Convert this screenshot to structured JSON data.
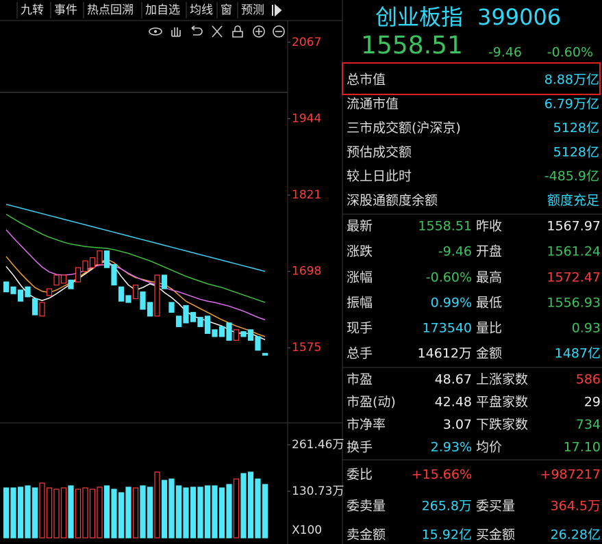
{
  "toolbar": {
    "tabs": [
      "九转",
      "事件",
      "热点回溯",
      "加自选",
      "均线",
      "窗",
      "预测"
    ]
  },
  "header": {
    "name": "创业板指",
    "code": "399006",
    "price": "1558.51",
    "change": "-9.46",
    "change_pct": "-0.60%"
  },
  "stats": [
    [
      "总市值",
      "8.88万亿"
    ],
    [
      "流通市值",
      "6.79万亿"
    ],
    [
      "三市成交额(沪深京)",
      "5128亿"
    ],
    [
      "预估成交额",
      "5128亿"
    ],
    [
      "较上日此时",
      "-485.9亿"
    ],
    [
      "深股通额度余额",
      "额度充足"
    ]
  ],
  "quotes": [
    [
      "最新",
      "1558.51",
      "昨收",
      "1567.97"
    ],
    [
      "涨跌",
      "-9.46",
      "开盘",
      "1561.24"
    ],
    [
      "涨幅",
      "-0.60%",
      "最高",
      "1572.47"
    ],
    [
      "振幅",
      "0.99%",
      "最低",
      "1556.93"
    ],
    [
      "现手",
      "173540",
      "量比",
      "0.93"
    ],
    [
      "总手",
      "14612万",
      "金额",
      "1487亿"
    ],
    [
      "市盈",
      "48.67",
      "上涨家数",
      "586"
    ],
    [
      "市盈(动)",
      "42.48",
      "平盘家数",
      "29"
    ],
    [
      "市净率",
      "3.07",
      "下跌家数",
      "734"
    ],
    [
      "换手",
      "2.93%",
      "均价",
      "17.10"
    ],
    [
      "委比",
      "+15.66%",
      "+987217"
    ],
    [
      "委卖量",
      "265.8万",
      "委买量",
      "364.5万"
    ],
    [
      "卖金额",
      "15.92亿",
      "买金额",
      "26.28亿"
    ]
  ],
  "kline": {
    "ylim": [
      1454,
      2102
    ],
    "yticks": [
      2067,
      1944,
      1821,
      1698,
      1575
    ],
    "open": [
      1681,
      1673,
      1668,
      1673,
      1654,
      1626,
      1659,
      1676,
      1679,
      1684,
      1681,
      1698,
      1704,
      1709,
      1731,
      1709,
      1673,
      1659,
      1654,
      1665,
      1648,
      1626,
      1692,
      1648,
      1626,
      1643,
      1632,
      1624,
      1626,
      1604,
      1609,
      1615,
      1587,
      1601,
      1604,
      1593,
      1566
    ],
    "close": [
      1665,
      1662,
      1650,
      1657,
      1628,
      1648,
      1670,
      1692,
      1692,
      1670,
      1704,
      1715,
      1720,
      1731,
      1704,
      1676,
      1650,
      1648,
      1676,
      1637,
      1626,
      1692,
      1670,
      1632,
      1609,
      1615,
      1617,
      1609,
      1598,
      1593,
      1593,
      1587,
      1604,
      1593,
      1587,
      1571,
      1563
    ],
    "ma": [
      {
        "color": "#ffffff",
        "values": [
          1706,
          1692,
          1676,
          1662,
          1655,
          1651,
          1655,
          1662,
          1670,
          1678,
          1686,
          1694,
          1702,
          1712,
          1714,
          1706,
          1690,
          1676,
          1668,
          1672,
          1678,
          1674,
          1664,
          1656,
          1646,
          1634,
          1626,
          1622,
          1618,
          1614,
          1610,
          1604,
          1599,
          1598,
          1598,
          1593,
          1588
        ]
      },
      {
        "color": "#f0a030",
        "values": [
          1722,
          1708,
          1695,
          1683,
          1672,
          1666,
          1664,
          1668,
          1674,
          1680,
          1688,
          1696,
          1704,
          1712,
          1718,
          1712,
          1702,
          1694,
          1688,
          1685,
          1682,
          1680,
          1677,
          1670,
          1660,
          1650,
          1644,
          1638,
          1632,
          1626,
          1620,
          1615,
          1610,
          1606,
          1602,
          1597,
          1593
        ]
      },
      {
        "color": "#e070f0",
        "values": [
          1765,
          1752,
          1740,
          1728,
          1716,
          1705,
          1697,
          1693,
          1692,
          1693,
          1695,
          1700,
          1705,
          1708,
          1709,
          1707,
          1702,
          1695,
          1689,
          1684,
          1680,
          1676,
          1672,
          1668,
          1665,
          1661,
          1657,
          1653,
          1650,
          1648,
          1645,
          1642,
          1638,
          1634,
          1629,
          1624,
          1620
        ]
      },
      {
        "color": "#40c040",
        "values": [
          1790,
          1783,
          1776,
          1770,
          1764,
          1758,
          1753,
          1749,
          1745,
          1742,
          1740,
          1738,
          1737,
          1736,
          1735,
          1733,
          1730,
          1727,
          1723,
          1719,
          1715,
          1710,
          1705,
          1700,
          1695,
          1690,
          1686,
          1682,
          1678,
          1675,
          1672,
          1668,
          1664,
          1660,
          1656,
          1652,
          1648
        ]
      },
      {
        "color": "#40d0f0",
        "values": [
          1806,
          1803,
          1800,
          1797,
          1794,
          1791,
          1788,
          1785,
          1782,
          1779,
          1776,
          1773,
          1770,
          1767,
          1764,
          1761,
          1758,
          1755,
          1752,
          1749,
          1746,
          1743,
          1740,
          1737,
          1734,
          1731,
          1728,
          1725,
          1722,
          1719,
          1716,
          1713,
          1710,
          1707,
          1704,
          1701,
          1698
        ]
      }
    ]
  },
  "volume": {
    "ylim": [
      0,
      319
    ],
    "yticks": [
      {
        "value": 261.46,
        "label": "261.46万"
      },
      {
        "value": 130.73,
        "label": "130.73万"
      }
    ],
    "unit": "X100",
    "values": [
      140.3,
      140.3,
      142.3,
      146.1,
      140.3,
      153.8,
      140.3,
      136.5,
      140.3,
      146.1,
      136.5,
      140.3,
      136.5,
      142.3,
      146.1,
      136.5,
      126.9,
      142.3,
      140.3,
      146.1,
      142.3,
      184.6,
      161.5,
      165.3,
      146.1,
      140.3,
      142.3,
      142.3,
      146.1,
      146.1,
      140.3,
      150.0,
      165.3,
      180.7,
      184.6,
      165.3,
      150.0
    ]
  }
}
